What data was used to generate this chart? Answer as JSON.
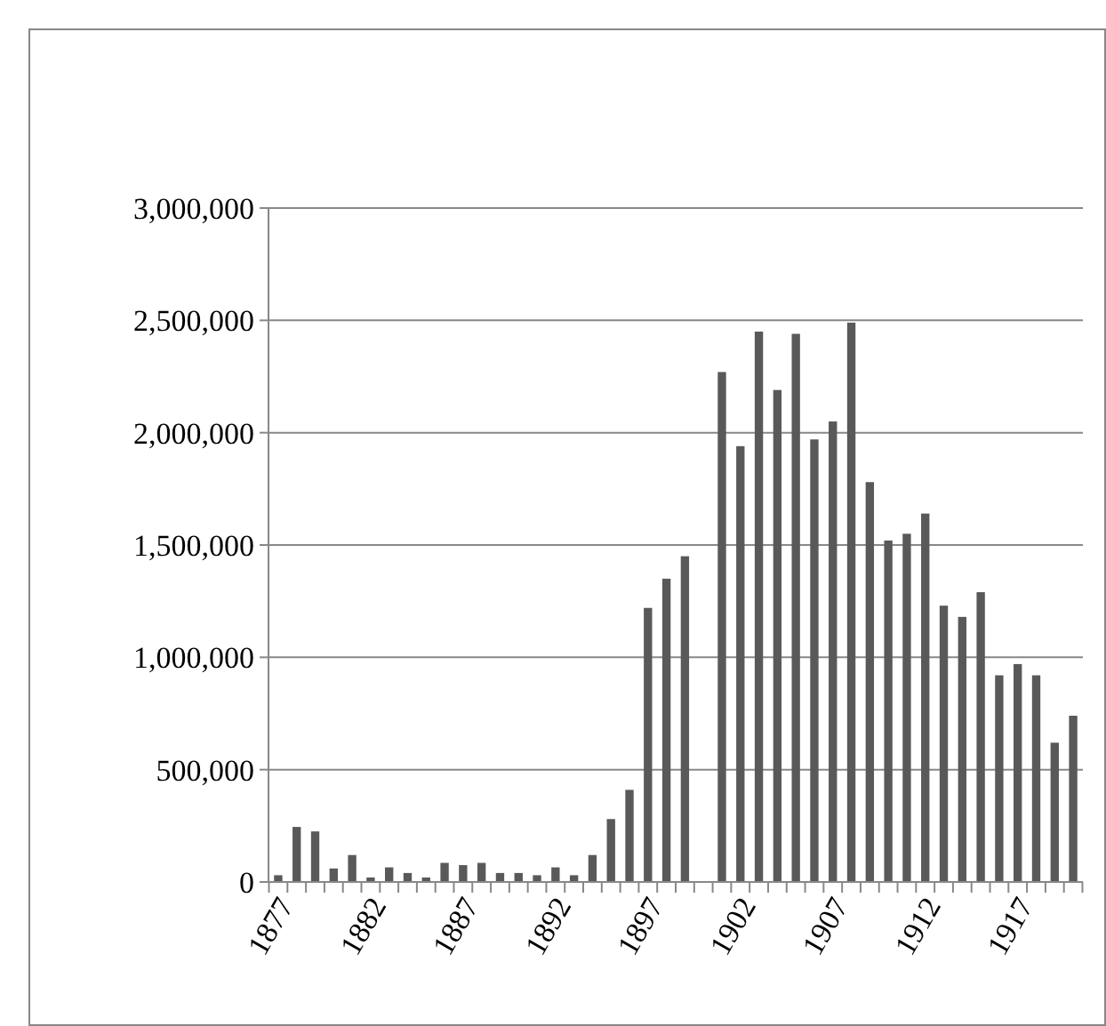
{
  "chart_data": {
    "type": "bar",
    "categories": [
      "1877",
      null,
      null,
      null,
      null,
      "1882",
      null,
      null,
      null,
      null,
      "1887",
      null,
      null,
      null,
      null,
      "1892",
      null,
      null,
      null,
      null,
      "1897",
      null,
      null,
      null,
      null,
      "1902",
      null,
      null,
      null,
      null,
      "1907",
      null,
      null,
      null,
      null,
      "1912",
      null,
      null,
      null,
      null,
      "1917",
      null,
      null,
      null
    ],
    "values": [
      30000,
      245000,
      225000,
      60000,
      120000,
      20000,
      65000,
      40000,
      20000,
      85000,
      75000,
      85000,
      40000,
      40000,
      30000,
      65000,
      30000,
      120000,
      280000,
      410000,
      1220000,
      1350000,
      1450000,
      null,
      2270000,
      1940000,
      2450000,
      2190000,
      2440000,
      1970000,
      2050000,
      2490000,
      1780000,
      1520000,
      1550000,
      1640000,
      1230000,
      1180000,
      1290000,
      920000,
      970000,
      920000,
      620000,
      740000
    ],
    "color": "#595959",
    "ylim": [
      0,
      3000000
    ],
    "yticks": [
      {
        "value": 0,
        "label": "0"
      },
      {
        "value": 500000,
        "label": "500,000"
      },
      {
        "value": 1000000,
        "label": "1,000,000"
      },
      {
        "value": 1500000,
        "label": "1,500,000"
      },
      {
        "value": 2000000,
        "label": "2,000,000"
      },
      {
        "value": 2500000,
        "label": "2,500,000"
      },
      {
        "value": 3000000,
        "label": "3,000,000"
      }
    ],
    "grid": "y"
  }
}
